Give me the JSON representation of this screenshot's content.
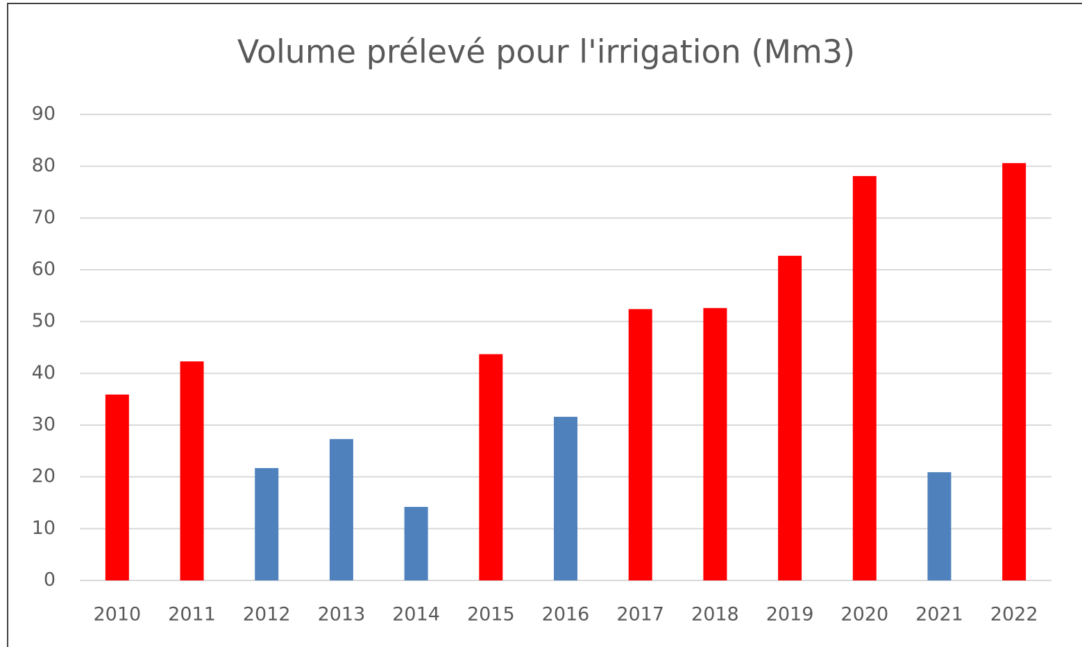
{
  "chart_data": {
    "type": "bar",
    "title": "Volume prélevé pour l'irrigation (Mm3)",
    "categories": [
      "2010",
      "2011",
      "2012",
      "2013",
      "2014",
      "2015",
      "2016",
      "2017",
      "2018",
      "2019",
      "2020",
      "2021",
      "2022"
    ],
    "values": [
      35.9,
      42.3,
      21.7,
      27.3,
      14.2,
      43.7,
      31.6,
      52.4,
      52.6,
      62.7,
      78.1,
      20.9,
      80.6
    ],
    "colors": [
      "#ff0000",
      "#ff0000",
      "#4f81bd",
      "#4f81bd",
      "#4f81bd",
      "#ff0000",
      "#4f81bd",
      "#ff0000",
      "#ff0000",
      "#ff0000",
      "#ff0000",
      "#4f81bd",
      "#ff0000"
    ],
    "ylim": [
      0,
      90
    ],
    "yticks": [
      0,
      10,
      20,
      30,
      40,
      50,
      60,
      70,
      80,
      90
    ],
    "grid": true
  }
}
